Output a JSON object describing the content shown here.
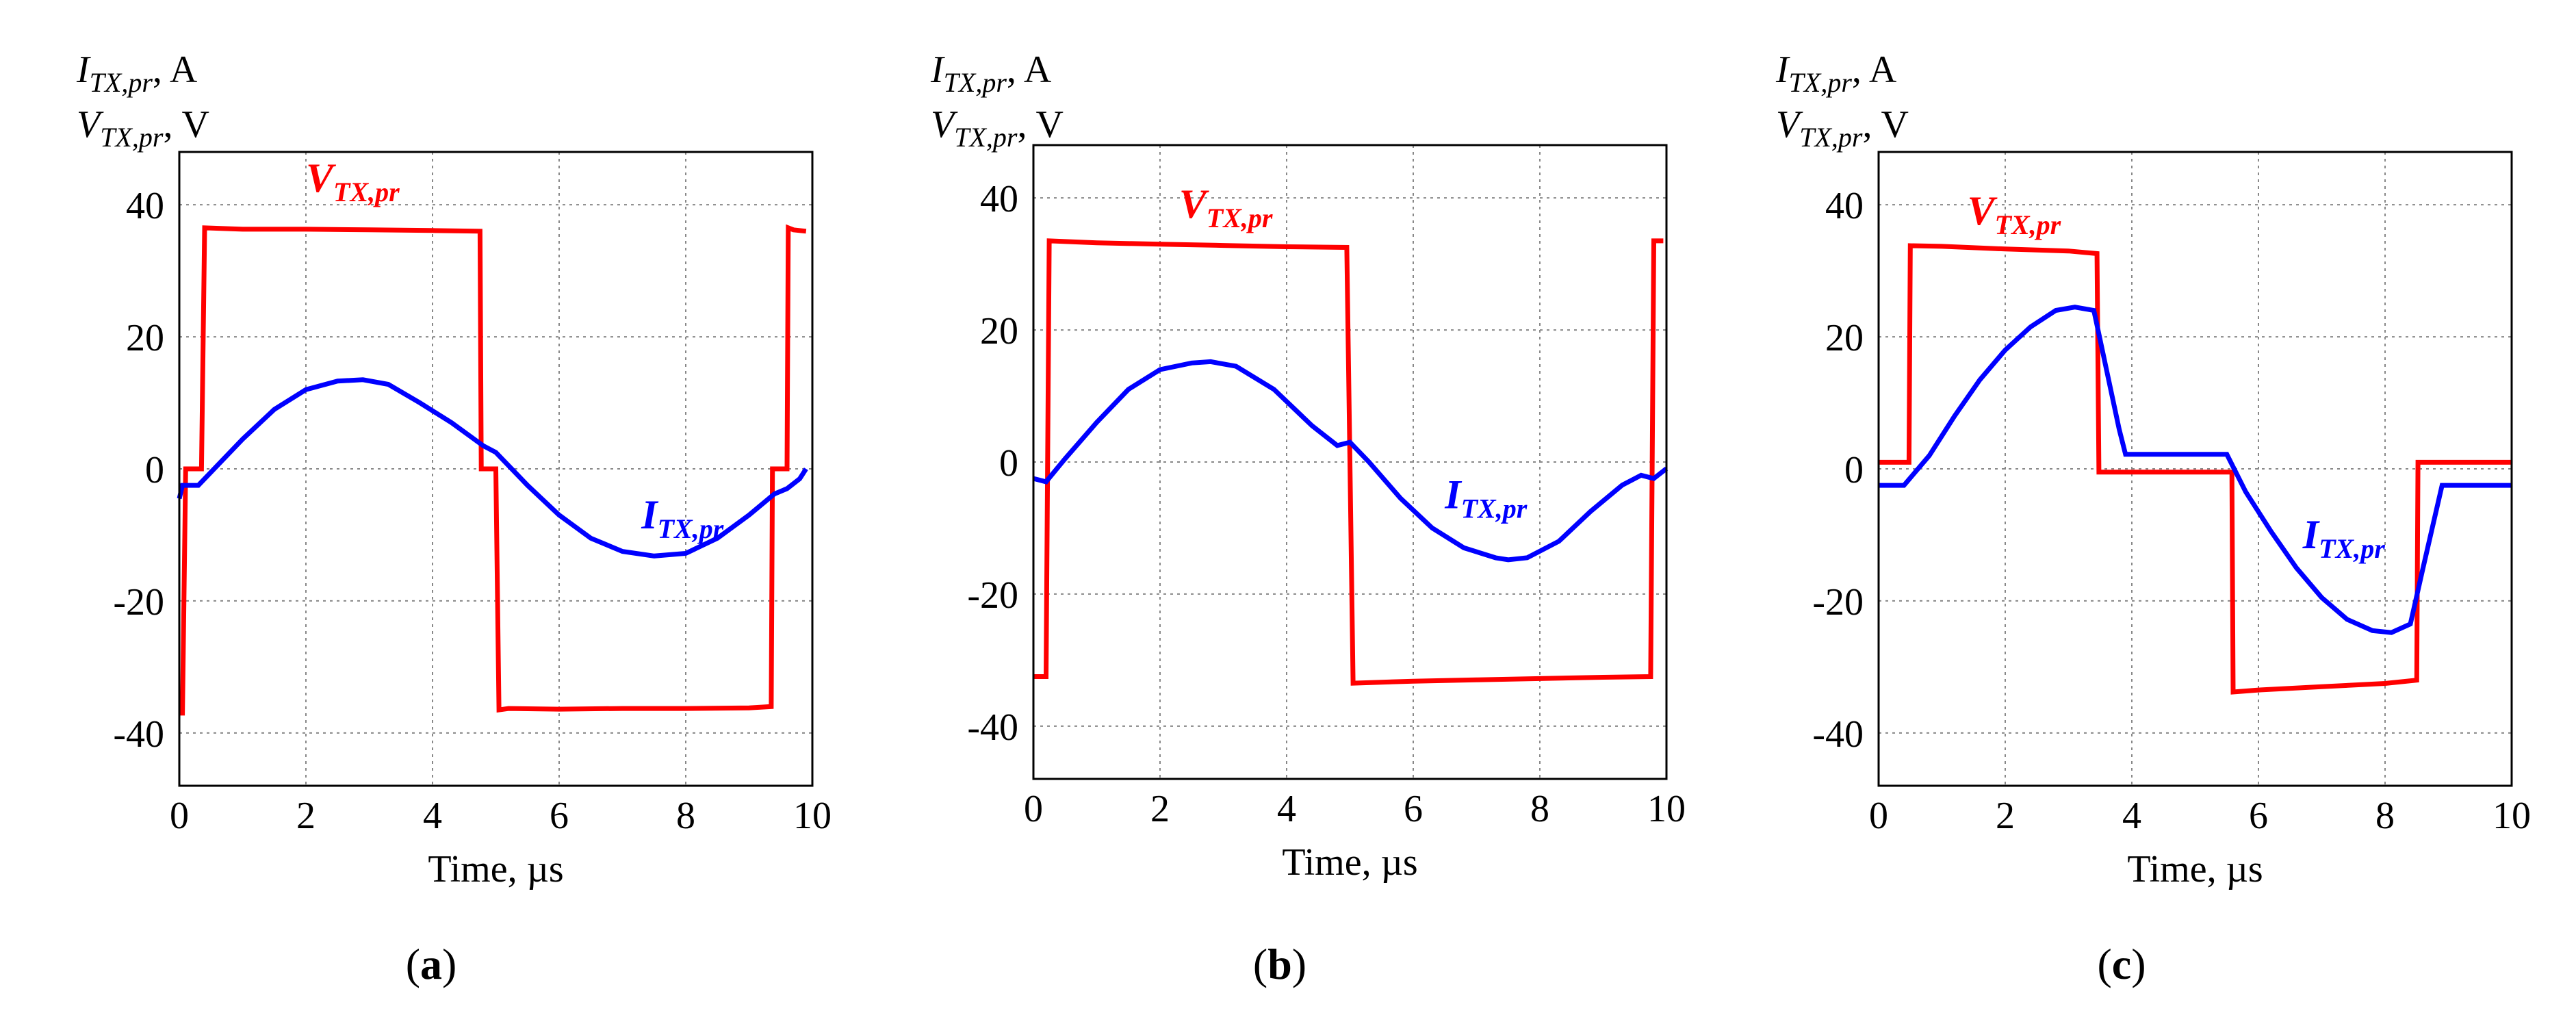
{
  "figure": {
    "panels": [
      {
        "label_open": "(",
        "label_letter": "a",
        "label_close": ")"
      },
      {
        "label_open": "(",
        "label_letter": "b",
        "label_close": ")"
      },
      {
        "label_open": "(",
        "label_letter": "c",
        "label_close": ")"
      }
    ]
  },
  "chart_data": [
    {
      "type": "line",
      "panel": "(a)",
      "ylabel_lines": [
        {
          "main": "I",
          "sub": "TX,pr",
          "unit": ", A"
        },
        {
          "main": "V",
          "sub": "TX,pr",
          "unit": ", V"
        }
      ],
      "xlabel": "Time, µs",
      "xlim": [
        0,
        10
      ],
      "ylim": [
        -48,
        48
      ],
      "xticks": [
        0,
        2,
        4,
        6,
        8,
        10
      ],
      "yticks": [
        40,
        20,
        0,
        -20,
        -40
      ],
      "grid": true,
      "series": [
        {
          "name": "V_TX,pr",
          "label_main": "V",
          "label_sub": "TX,pr",
          "color": "#ff0000",
          "label_at": [
            2.0,
            42
          ],
          "x": [
            0,
            0.05,
            0.1,
            0.2,
            0.3,
            0.35,
            0.4,
            1.0,
            2.0,
            3.0,
            4.0,
            4.75,
            4.77,
            4.82,
            5.0,
            5.05,
            5.2,
            6.0,
            7.0,
            8.0,
            9.0,
            9.35,
            9.37,
            9.4,
            9.6,
            9.62,
            9.7,
            9.9
          ],
          "y": [
            -37,
            -37,
            0,
            0,
            0,
            0,
            36.5,
            36.3,
            36.3,
            36.2,
            36.1,
            36.0,
            0,
            0,
            0,
            -36.5,
            -36.3,
            -36.4,
            -36.3,
            -36.3,
            -36.2,
            -36.0,
            0,
            0,
            0,
            36.5,
            36.2,
            36.0
          ]
        },
        {
          "name": "I_TX,pr",
          "label_main": "I",
          "label_sub": "TX,pr",
          "color": "#0000ff",
          "label_at": [
            7.3,
            -9
          ],
          "x": [
            0,
            0.05,
            0.3,
            0.6,
            1.0,
            1.5,
            2.0,
            2.5,
            2.9,
            3.3,
            3.8,
            4.3,
            4.8,
            5.0,
            5.5,
            6.0,
            6.5,
            7.0,
            7.5,
            8.0,
            8.5,
            9.0,
            9.4,
            9.6,
            9.8,
            9.9
          ],
          "y": [
            -4.5,
            -2.5,
            -2.5,
            0.5,
            4.5,
            9.0,
            12.0,
            13.3,
            13.5,
            12.8,
            10.0,
            7.0,
            3.5,
            2.5,
            -2.5,
            -7.0,
            -10.5,
            -12.5,
            -13.2,
            -12.8,
            -10.5,
            -7.0,
            -3.8,
            -3.0,
            -1.5,
            0
          ]
        }
      ]
    },
    {
      "type": "line",
      "panel": "(b)",
      "ylabel_lines": [
        {
          "main": "I",
          "sub": "TX,pr",
          "unit": ", A"
        },
        {
          "main": "V",
          "sub": "TX,pr",
          "unit": ", V"
        }
      ],
      "xlabel": "Time, µs",
      "xlim": [
        0,
        10
      ],
      "ylim": [
        -48,
        48
      ],
      "xticks": [
        0,
        2,
        4,
        6,
        8,
        10
      ],
      "yticks": [
        40,
        20,
        0,
        -20,
        -40
      ],
      "grid": true,
      "series": [
        {
          "name": "V_TX,pr",
          "label_main": "V",
          "label_sub": "TX,pr",
          "color": "#ff0000",
          "label_at": [
            2.3,
            37
          ],
          "x": [
            0,
            0.2,
            0.25,
            1.0,
            2.0,
            3.0,
            4.0,
            4.95,
            5.0,
            5.05,
            6.0,
            7.0,
            8.0,
            9.0,
            9.75,
            9.8,
            9.95
          ],
          "y": [
            -32.5,
            -32.5,
            33.5,
            33.2,
            33.0,
            32.8,
            32.6,
            32.5,
            0,
            -33.5,
            -33.2,
            -33.0,
            -32.8,
            -32.6,
            -32.5,
            33.5,
            33.5
          ]
        },
        {
          "name": "I_TX,pr",
          "label_main": "I",
          "label_sub": "TX,pr",
          "color": "#0000ff",
          "label_at": [
            6.5,
            -7
          ],
          "x": [
            0,
            0.2,
            0.5,
            1.0,
            1.5,
            2.0,
            2.5,
            2.8,
            3.2,
            3.8,
            4.4,
            4.8,
            5.0,
            5.3,
            5.8,
            6.3,
            6.8,
            7.3,
            7.5,
            7.8,
            8.3,
            8.8,
            9.3,
            9.6,
            9.8,
            10.0
          ],
          "y": [
            -2.5,
            -3.0,
            0.5,
            6.0,
            11.0,
            14.0,
            15.0,
            15.2,
            14.5,
            11.0,
            5.5,
            2.5,
            3.0,
            0,
            -5.5,
            -10.0,
            -13.0,
            -14.5,
            -14.8,
            -14.5,
            -12.0,
            -7.5,
            -3.5,
            -2.0,
            -2.5,
            -1.0
          ]
        }
      ]
    },
    {
      "type": "line",
      "panel": "(c)",
      "ylabel_lines": [
        {
          "main": "I",
          "sub": "TX,pr",
          "unit": ", A"
        },
        {
          "main": "V",
          "sub": "TX,pr",
          "unit": ", V"
        }
      ],
      "xlabel": "Time, µs",
      "xlim": [
        0,
        10
      ],
      "ylim": [
        -48,
        48
      ],
      "xticks": [
        0,
        2,
        4,
        6,
        8,
        10
      ],
      "yticks": [
        40,
        20,
        0,
        -20,
        -40
      ],
      "grid": true,
      "series": [
        {
          "name": "V_TX,pr",
          "label_main": "V",
          "label_sub": "TX,pr",
          "color": "#ff0000",
          "label_at": [
            1.4,
            37
          ],
          "x": [
            0,
            0.48,
            0.5,
            1.0,
            2.0,
            3.0,
            3.45,
            3.48,
            4.0,
            5.0,
            5.58,
            5.6,
            6.0,
            7.0,
            8.0,
            8.5,
            8.52,
            9.0,
            10.0
          ],
          "y": [
            1.0,
            1.0,
            33.8,
            33.7,
            33.3,
            33.0,
            32.6,
            -0.5,
            -0.5,
            -0.5,
            -0.5,
            -33.8,
            -33.5,
            -33.0,
            -32.5,
            -32.0,
            1.0,
            1.0,
            1.0
          ],
          "label_below": false
        },
        {
          "name": "I_TX,pr",
          "label_main": "I",
          "label_sub": "TX,pr",
          "color": "#0000ff",
          "label_at": [
            6.7,
            -12
          ],
          "x": [
            0,
            0.4,
            0.8,
            1.2,
            1.6,
            2.0,
            2.4,
            2.8,
            3.1,
            3.4,
            3.6,
            3.8,
            3.9,
            4.5,
            5.0,
            5.5,
            5.8,
            6.2,
            6.6,
            7.0,
            7.4,
            7.8,
            8.1,
            8.4,
            8.6,
            8.9,
            9.5,
            10.0
          ],
          "y": [
            -2.5,
            -2.5,
            2.0,
            8.0,
            13.5,
            18.0,
            21.5,
            24.0,
            24.5,
            24.0,
            15.0,
            6.0,
            2.2,
            2.2,
            2.2,
            2.2,
            -3.5,
            -9.5,
            -15.0,
            -19.5,
            -22.8,
            -24.5,
            -24.8,
            -23.5,
            -15.0,
            -2.5,
            -2.5,
            -2.5
          ]
        }
      ]
    }
  ]
}
